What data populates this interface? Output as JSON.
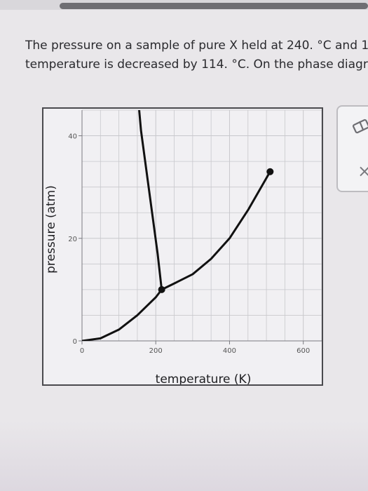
{
  "question": {
    "line1": "The pressure on a sample of pure X held at 240. °C and 1",
    "line2": "temperature is decreased by 114. °C. On the phase diagra"
  },
  "chart_data": {
    "type": "line",
    "xlabel": "temperature (K)",
    "ylabel": "pressure (atm)",
    "xlim": [
      0,
      650
    ],
    "ylim": [
      0,
      45
    ],
    "x_ticks": [
      0,
      200,
      400,
      600
    ],
    "y_ticks": [
      0,
      20,
      40
    ],
    "grid": true,
    "series": [
      {
        "x": [
          0,
          50,
          100,
          150,
          200,
          216
        ],
        "y": [
          0,
          0.5,
          2.2,
          5.0,
          8.5,
          10
        ]
      },
      {
        "x": [
          216,
          250,
          300,
          350,
          400,
          450,
          510
        ],
        "y": [
          10,
          11.2,
          13,
          16,
          20,
          25.5,
          33
        ]
      },
      {
        "x": [
          216,
          205,
          190,
          175,
          160,
          150
        ],
        "y": [
          10,
          17,
          25,
          33,
          41,
          49
        ]
      }
    ],
    "points": [
      {
        "x": 216,
        "y": 10,
        "label": ""
      },
      {
        "x": 510,
        "y": 33,
        "label": ""
      }
    ],
    "colors": {
      "line": "#111111",
      "grid": "#c8c8cc"
    }
  },
  "tools": {
    "eraser_icon": "eraser-icon",
    "close_icon": "close-icon",
    "close_glyph": "×"
  }
}
